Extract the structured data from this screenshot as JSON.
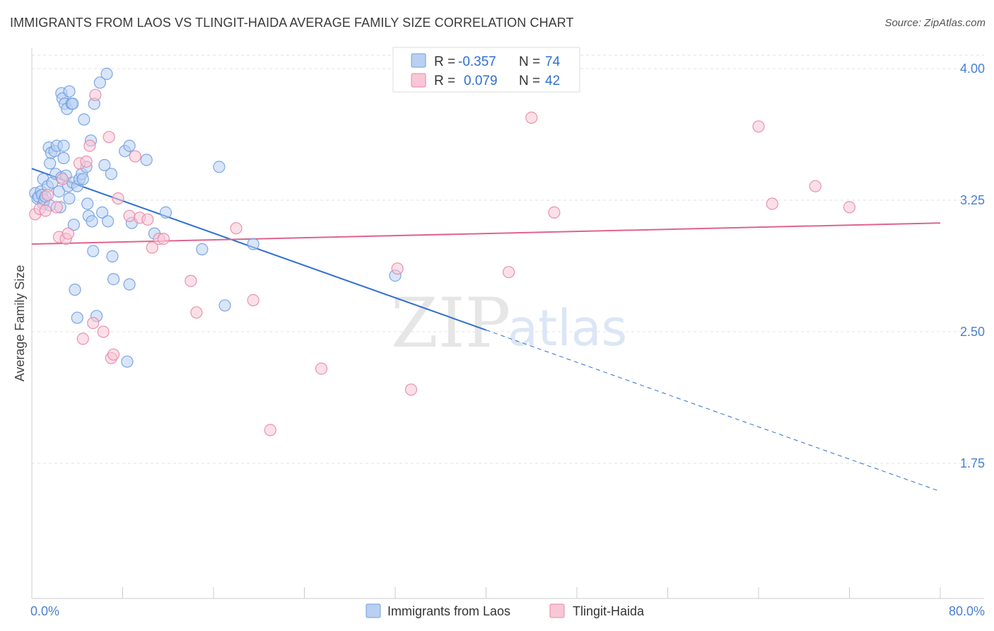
{
  "header": {
    "title": "IMMIGRANTS FROM LAOS VS TLINGIT-HAIDA AVERAGE FAMILY SIZE CORRELATION CHART",
    "source": "Source: ZipAtlas.com"
  },
  "watermark": {
    "zip": "ZIP",
    "atlas": "atlas"
  },
  "legend": {
    "rows": [
      {
        "r_label": "R =",
        "r_value": "-0.357",
        "n_label": "N =",
        "n_value": "74"
      },
      {
        "r_label": "R =",
        "r_value": "0.079",
        "n_label": "N =",
        "n_value": "42"
      }
    ]
  },
  "bottom_legend": [
    "Immigrants from Laos",
    "Tlingit-Haida"
  ],
  "chart_data": {
    "type": "scatter",
    "title": "IMMIGRANTS FROM LAOS VS TLINGIT-HAIDA AVERAGE FAMILY SIZE CORRELATION CHART",
    "xlabel": "",
    "ylabel": "Average Family Size",
    "xlim": [
      0,
      80
    ],
    "ylim": [
      1.0,
      4.1
    ],
    "x_tick_labels": [
      "0.0%",
      "80.0%"
    ],
    "y_ticks": [
      1.75,
      2.5,
      3.25,
      4.0
    ],
    "y_tick_labels": [
      "1.75",
      "2.50",
      "3.25",
      "4.00"
    ],
    "grid": true,
    "legend_position": "top-center",
    "series": [
      {
        "name": "Immigrants from Laos",
        "color": "#6f9fe0",
        "fill": "#b9d0f2",
        "r": -0.357,
        "n": 74,
        "trend": {
          "x0": 0,
          "y0": 3.43,
          "x_solid_end": 40,
          "x1": 80,
          "y1": 1.59
        },
        "points": [
          [
            0.3,
            3.29
          ],
          [
            0.5,
            3.26
          ],
          [
            0.6,
            3.27
          ],
          [
            0.8,
            3.3
          ],
          [
            0.9,
            3.28
          ],
          [
            1.0,
            3.23
          ],
          [
            1.1,
            3.25
          ],
          [
            1.2,
            3.27
          ],
          [
            1.0,
            3.37
          ],
          [
            1.4,
            3.33
          ],
          [
            1.5,
            3.55
          ],
          [
            1.6,
            3.46
          ],
          [
            1.7,
            3.52
          ],
          [
            1.8,
            3.35
          ],
          [
            1.6,
            3.22
          ],
          [
            2.0,
            3.53
          ],
          [
            2.1,
            3.4
          ],
          [
            2.2,
            3.56
          ],
          [
            2.4,
            3.3
          ],
          [
            2.5,
            3.21
          ],
          [
            2.6,
            3.38
          ],
          [
            2.8,
            3.56
          ],
          [
            2.6,
            3.86
          ],
          [
            2.7,
            3.83
          ],
          [
            2.9,
            3.8
          ],
          [
            2.8,
            3.49
          ],
          [
            3.0,
            3.39
          ],
          [
            3.1,
            3.77
          ],
          [
            3.3,
            3.87
          ],
          [
            3.2,
            3.33
          ],
          [
            3.3,
            3.26
          ],
          [
            3.5,
            3.8
          ],
          [
            3.6,
            3.8
          ],
          [
            3.6,
            3.35
          ],
          [
            3.7,
            3.11
          ],
          [
            3.8,
            2.74
          ],
          [
            4.0,
            2.58
          ],
          [
            4.0,
            3.33
          ],
          [
            4.2,
            3.37
          ],
          [
            4.4,
            3.4
          ],
          [
            4.5,
            3.37
          ],
          [
            4.6,
            3.71
          ],
          [
            4.8,
            3.44
          ],
          [
            4.9,
            3.23
          ],
          [
            5.0,
            3.16
          ],
          [
            5.2,
            3.59
          ],
          [
            5.3,
            3.13
          ],
          [
            5.4,
            2.96
          ],
          [
            5.5,
            3.8
          ],
          [
            5.7,
            2.59
          ],
          [
            6.0,
            3.92
          ],
          [
            6.2,
            3.18
          ],
          [
            6.4,
            3.45
          ],
          [
            6.6,
            3.97
          ],
          [
            6.7,
            3.13
          ],
          [
            7.0,
            3.4
          ],
          [
            7.1,
            2.93
          ],
          [
            7.2,
            2.8
          ],
          [
            8.2,
            3.53
          ],
          [
            8.4,
            2.33
          ],
          [
            8.6,
            3.56
          ],
          [
            8.6,
            2.77
          ],
          [
            8.8,
            3.12
          ],
          [
            10.1,
            3.48
          ],
          [
            10.8,
            3.06
          ],
          [
            11.8,
            3.18
          ],
          [
            15.0,
            2.97
          ],
          [
            16.5,
            3.44
          ],
          [
            17.0,
            2.65
          ],
          [
            19.5,
            3.0
          ],
          [
            32.0,
            2.82
          ]
        ]
      },
      {
        "name": "Tlingit-Haida",
        "color": "#e887a6",
        "fill": "#f8c7d6",
        "r": 0.079,
        "n": 42,
        "trend": {
          "x0": 0,
          "y0": 3.0,
          "x1": 80,
          "y1": 3.12
        },
        "points": [
          [
            0.3,
            3.17
          ],
          [
            0.7,
            3.2
          ],
          [
            1.2,
            3.19
          ],
          [
            1.4,
            3.28
          ],
          [
            2.2,
            3.21
          ],
          [
            2.4,
            3.04
          ],
          [
            2.7,
            3.37
          ],
          [
            3.0,
            3.03
          ],
          [
            3.2,
            3.06
          ],
          [
            4.2,
            3.46
          ],
          [
            4.5,
            2.46
          ],
          [
            4.8,
            3.47
          ],
          [
            5.1,
            3.56
          ],
          [
            5.4,
            2.55
          ],
          [
            5.6,
            3.85
          ],
          [
            6.3,
            2.5
          ],
          [
            6.8,
            3.61
          ],
          [
            7.0,
            2.35
          ],
          [
            7.2,
            2.37
          ],
          [
            7.6,
            3.26
          ],
          [
            8.6,
            3.16
          ],
          [
            9.1,
            3.5
          ],
          [
            9.5,
            3.15
          ],
          [
            10.2,
            3.14
          ],
          [
            10.6,
            2.98
          ],
          [
            11.2,
            3.03
          ],
          [
            11.6,
            3.03
          ],
          [
            14.0,
            2.79
          ],
          [
            14.5,
            2.61
          ],
          [
            18.0,
            3.09
          ],
          [
            19.5,
            2.68
          ],
          [
            21.0,
            1.94
          ],
          [
            25.5,
            2.29
          ],
          [
            32.2,
            2.86
          ],
          [
            33.4,
            2.17
          ],
          [
            42.0,
            2.84
          ],
          [
            44.0,
            3.72
          ],
          [
            46.0,
            3.18
          ],
          [
            64.0,
            3.67
          ],
          [
            65.2,
            3.23
          ],
          [
            69.0,
            3.33
          ],
          [
            72.0,
            3.21
          ]
        ]
      }
    ]
  }
}
